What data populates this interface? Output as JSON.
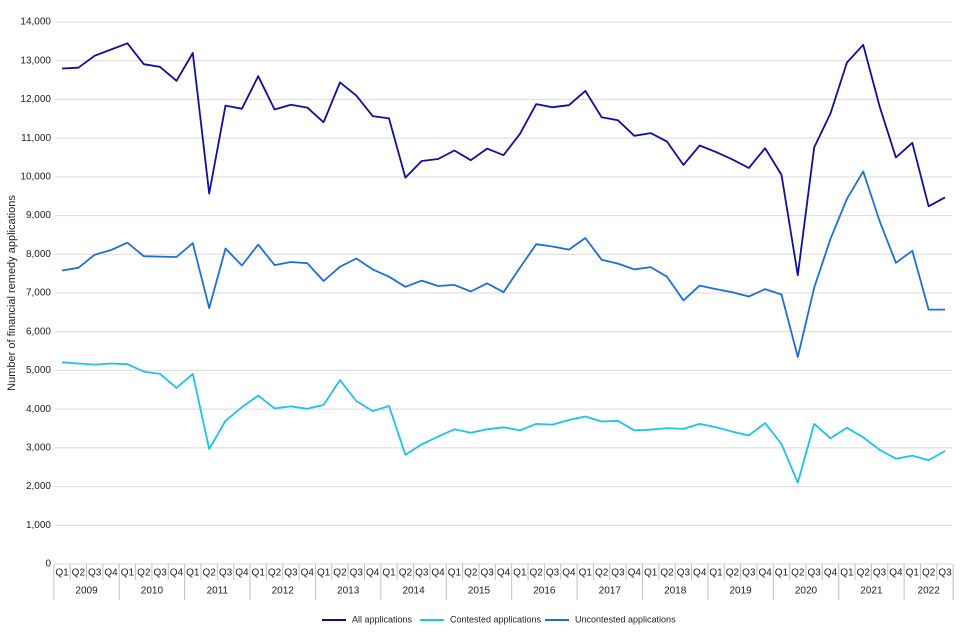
{
  "chart_data": {
    "type": "line",
    "y_label": "Number of financial remedy applications",
    "categories": [
      "Q1",
      "Q2",
      "Q3",
      "Q4",
      "Q1",
      "Q2",
      "Q3",
      "Q4",
      "Q1",
      "Q2",
      "Q3",
      "Q4",
      "Q1",
      "Q2",
      "Q3",
      "Q4",
      "Q1",
      "Q2",
      "Q3",
      "Q4",
      "Q1",
      "Q2",
      "Q3",
      "Q4",
      "Q1",
      "Q2",
      "Q3",
      "Q4",
      "Q1",
      "Q2",
      "Q3",
      "Q4",
      "Q1",
      "Q2",
      "Q3",
      "Q4",
      "Q1",
      "Q2",
      "Q3",
      "Q4",
      "Q1",
      "Q2",
      "Q3",
      "Q4",
      "Q1",
      "Q2",
      "Q3",
      "Q4",
      "Q1",
      "Q2",
      "Q3",
      "Q4",
      "Q1",
      "Q2",
      "Q3"
    ],
    "years": [
      "2009",
      "2010",
      "2011",
      "2012",
      "2013",
      "2014",
      "2015",
      "2016",
      "2017",
      "2018",
      "2019",
      "2020",
      "2021",
      "2022"
    ],
    "series": [
      {
        "name": "All applications",
        "color": "#0d0fa3",
        "values": [
          12800,
          12820,
          13130,
          13290,
          13450,
          12910,
          12840,
          12480,
          13200,
          9570,
          11840,
          11760,
          12600,
          11740,
          11860,
          11790,
          11410,
          12440,
          12100,
          11570,
          11510,
          9980,
          10410,
          10460,
          10680,
          10430,
          10730,
          10560,
          11110,
          11880,
          11800,
          11850,
          12220,
          11540,
          11460,
          11060,
          11130,
          10910,
          10310,
          10810,
          10640,
          10450,
          10230,
          10740,
          10050,
          7460,
          10760,
          11640,
          12950,
          13410,
          11820,
          10500,
          10880,
          9240,
          9470
        ]
      },
      {
        "name": "Contested applications",
        "color": "#1ac4ea",
        "values": [
          5210,
          5180,
          5150,
          5180,
          5160,
          4970,
          4910,
          4550,
          4910,
          2970,
          3700,
          4050,
          4350,
          4020,
          4070,
          4010,
          4110,
          4750,
          4210,
          3950,
          4080,
          2820,
          3090,
          3290,
          3480,
          3390,
          3480,
          3530,
          3450,
          3620,
          3600,
          3720,
          3810,
          3680,
          3700,
          3450,
          3470,
          3510,
          3490,
          3620,
          3530,
          3420,
          3320,
          3640,
          3100,
          2100,
          3620,
          3250,
          3520,
          3270,
          2950,
          2720,
          2800,
          2680,
          2920
        ]
      },
      {
        "name": "Uncontested applications",
        "color": "#1d6fe0",
        "values": [
          7580,
          7650,
          7990,
          8110,
          8300,
          7950,
          7940,
          7930,
          8290,
          6610,
          8150,
          7710,
          8250,
          7720,
          7800,
          7770,
          7310,
          7680,
          7890,
          7610,
          7420,
          7160,
          7320,
          7180,
          7210,
          7040,
          7250,
          7020,
          7650,
          8260,
          8200,
          8120,
          8420,
          7860,
          7760,
          7610,
          7670,
          7420,
          6810,
          7190,
          7100,
          7020,
          6910,
          7100,
          6960,
          5350,
          7140,
          8400,
          9430,
          10140,
          8860,
          7780,
          8090,
          6570,
          6570
        ]
      }
    ],
    "ylim": [
      0,
      14000
    ],
    "yticks": [
      0,
      {
        "value": 1000,
        "label": "1,000"
      },
      {
        "value": 2000,
        "label": "2,000"
      },
      {
        "value": 3000,
        "label": "3,000"
      },
      {
        "value": 4000,
        "label": "4,000"
      },
      {
        "value": 5000,
        "label": "5,000"
      },
      {
        "value": 6000,
        "label": "6,000"
      },
      {
        "value": 7000,
        "label": "7,000"
      },
      {
        "value": 8000,
        "label": "8,000"
      },
      {
        "value": 9000,
        "label": "9,000"
      },
      {
        "value": 10000,
        "label": "10,000"
      },
      {
        "value": 11000,
        "label": "11,000"
      },
      {
        "value": 12000,
        "label": "12,000"
      },
      {
        "value": 13000,
        "label": "13,000"
      },
      {
        "value": 14000,
        "label": "14,000"
      }
    ],
    "grid": true,
    "legend": "bottom"
  }
}
